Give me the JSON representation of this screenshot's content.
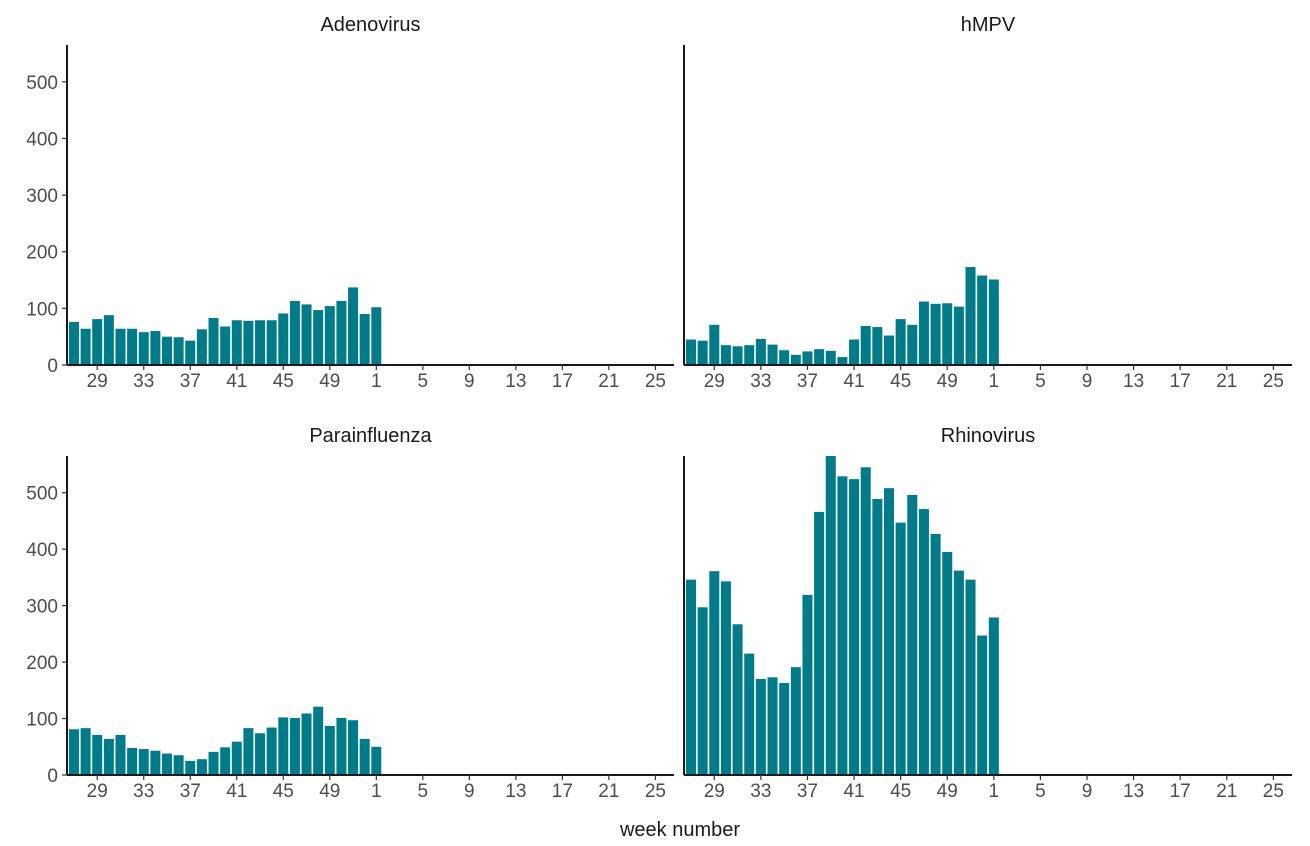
{
  "chart_data": {
    "type": "bar",
    "xlabel": "week number",
    "ylabel": "",
    "ylim": [
      0,
      565
    ],
    "y_ticks": [
      0,
      100,
      200,
      300,
      400,
      500
    ],
    "categories": [
      27,
      28,
      29,
      30,
      31,
      32,
      33,
      34,
      35,
      36,
      37,
      38,
      39,
      40,
      41,
      42,
      43,
      44,
      45,
      46,
      47,
      48,
      49,
      50,
      51,
      52,
      1,
      2,
      3,
      4,
      5,
      6,
      7,
      8,
      9,
      10,
      11,
      12,
      13,
      14,
      15,
      16,
      17,
      18,
      19,
      20,
      21,
      22,
      23,
      24,
      25,
      26
    ],
    "x_tick_labels": [
      "29",
      "33",
      "37",
      "41",
      "45",
      "49",
      "1",
      "5",
      "9",
      "13",
      "17",
      "21",
      "25"
    ],
    "bar_color": "#007B8A",
    "panels": [
      {
        "title": "Adenovirus",
        "values": [
          76,
          64,
          81,
          88,
          64,
          64,
          58,
          60,
          50,
          49,
          43,
          63,
          83,
          68,
          79,
          78,
          79,
          79,
          91,
          113,
          107,
          97,
          104,
          113,
          137,
          90,
          102
        ]
      },
      {
        "title": "hMPV",
        "values": [
          45,
          43,
          71,
          35,
          33,
          35,
          46,
          36,
          26,
          18,
          24,
          28,
          25,
          14,
          45,
          69,
          67,
          52,
          81,
          71,
          112,
          108,
          109,
          103,
          173,
          158,
          151
        ]
      },
      {
        "title": "Parainfluenza",
        "values": [
          81,
          83,
          71,
          64,
          71,
          48,
          46,
          43,
          38,
          35,
          25,
          28,
          41,
          49,
          59,
          83,
          74,
          84,
          102,
          101,
          109,
          121,
          87,
          101,
          97,
          64,
          50
        ]
      },
      {
        "title": "Rhinovirus",
        "values": [
          346,
          297,
          361,
          343,
          267,
          215,
          170,
          173,
          163,
          191,
          319,
          466,
          565,
          529,
          524,
          545,
          489,
          508,
          447,
          496,
          471,
          427,
          395,
          362,
          346,
          247,
          279
        ]
      }
    ]
  }
}
